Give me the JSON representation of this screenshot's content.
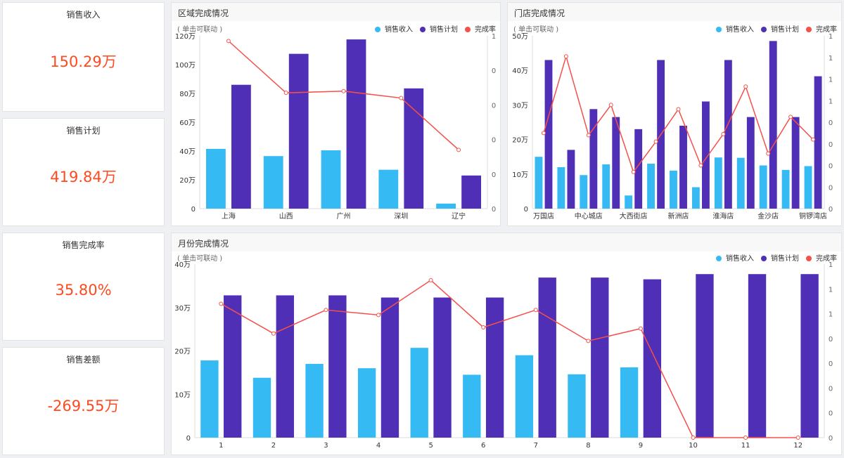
{
  "kpis": [
    {
      "title": "销售收入",
      "value": "150.29万"
    },
    {
      "title": "销售计划",
      "value": "419.84万"
    },
    {
      "title": "销售完成率",
      "value": "35.80%"
    },
    {
      "title": "销售差额",
      "value": "-269.55万"
    }
  ],
  "colors": {
    "income": "#35baf4",
    "plan": "#4f2fb5",
    "rate": "#f5504a",
    "kpi": "#ff4a1f"
  },
  "legend": {
    "income": "销售收入",
    "plan": "销售计划",
    "rate": "完成率"
  },
  "hint": "( 单击可联动 )",
  "chart_data": [
    {
      "type": "bar",
      "title": "区域完成情况",
      "categories": [
        "上海",
        "山西",
        "广州",
        "深圳",
        "辽宁"
      ],
      "category_labels": [
        "上海",
        "山西",
        "广州",
        "深圳",
        "辽宁"
      ],
      "series": [
        {
          "name": "销售收入",
          "values": [
            41.5,
            36.5,
            40.5,
            27,
            3.5
          ]
        },
        {
          "name": "销售计划",
          "values": [
            86,
            107.5,
            117.5,
            83.5,
            23
          ]
        },
        {
          "name": "完成率",
          "type": "line",
          "axis": "right",
          "values": [
            0.97,
            0.67,
            0.68,
            0.64,
            0.34
          ]
        }
      ],
      "ylim": [
        0,
        120
      ],
      "y_ticks": [
        "0",
        "20万",
        "40万",
        "60万",
        "80万",
        "100万",
        "120万"
      ],
      "y2lim": [
        0,
        1
      ],
      "y2_ticks": [
        "0",
        "0",
        "0",
        "0",
        "0",
        "1"
      ]
    },
    {
      "type": "bar",
      "title": "门店完成情况",
      "categories": [
        "万国店",
        "",
        "中心城店",
        "",
        "大西街店",
        "",
        "新洲店",
        "",
        "淮海店",
        "",
        "金沙店",
        "",
        "铜锣湾店"
      ],
      "category_labels": [
        "万国店",
        "",
        "中心城店",
        "",
        "大西街店",
        "",
        "新洲店",
        "",
        "淮海店",
        "",
        "金沙店",
        "",
        "铜锣湾店"
      ],
      "series": [
        {
          "name": "销售收入",
          "values": [
            15,
            12,
            9.7,
            12.8,
            3.8,
            13,
            11,
            6.2,
            14.8,
            14.7,
            12.5,
            11.2,
            12.3
          ]
        },
        {
          "name": "销售计划",
          "values": [
            43,
            17,
            28.8,
            26.5,
            23,
            43,
            24,
            31,
            43,
            26.5,
            48.5,
            26.5,
            38.3
          ]
        },
        {
          "name": "完成率",
          "type": "line",
          "axis": "right",
          "values": [
            0.7,
            1.41,
            0.68,
            0.96,
            0.34,
            0.62,
            0.92,
            0.4,
            0.69,
            1.13,
            0.51,
            0.85,
            0.64
          ]
        }
      ],
      "ylim": [
        0,
        50
      ],
      "y_ticks": [
        "0",
        "10万",
        "20万",
        "30万",
        "40万",
        "50万"
      ],
      "y2lim": [
        0,
        1.6
      ],
      "y2_ticks": [
        "0",
        "0",
        "0",
        "0",
        "0",
        "1",
        "1",
        "1",
        "1"
      ]
    },
    {
      "type": "bar",
      "title": "月份完成情况",
      "categories": [
        "1",
        "2",
        "3",
        "4",
        "5",
        "6",
        "7",
        "8",
        "9",
        "10",
        "11",
        "12"
      ],
      "category_labels": [
        "1",
        "2",
        "3",
        "4",
        "5",
        "6",
        "7",
        "8",
        "9",
        "10",
        "11",
        "12"
      ],
      "series": [
        {
          "name": "销售收入",
          "values": [
            17.8,
            13.8,
            17,
            16,
            20.7,
            14.5,
            19,
            14.6,
            16.2,
            0,
            0,
            0
          ]
        },
        {
          "name": "销售计划",
          "values": [
            32.8,
            32.8,
            32.8,
            32.3,
            32.3,
            32.3,
            36.9,
            36.9,
            36.5,
            37.7,
            37.7,
            37.7
          ]
        },
        {
          "name": "完成率",
          "type": "line",
          "axis": "right",
          "values": [
            1.08,
            0.84,
            1.03,
            0.99,
            1.27,
            0.89,
            1.03,
            0.78,
            0.88,
            0,
            0,
            0
          ]
        }
      ],
      "ylim": [
        0,
        40
      ],
      "y_ticks": [
        "0",
        "10万",
        "20万",
        "30万",
        "40万"
      ],
      "y2lim": [
        0,
        1.4
      ],
      "y2_ticks": [
        "0",
        "0",
        "0",
        "0",
        "0",
        "1",
        "1",
        "1"
      ]
    }
  ]
}
